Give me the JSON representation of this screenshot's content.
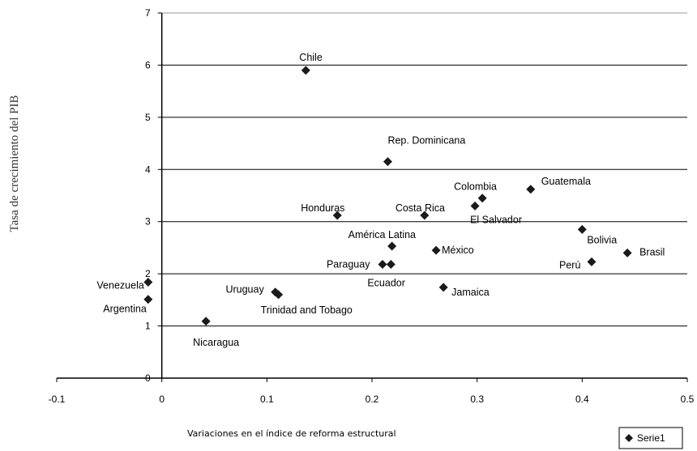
{
  "chart_data": {
    "type": "scatter",
    "xlabel": "Variaciones en el índice de  reforma estructural",
    "ylabel": "Tasa de crecimiento del PIB",
    "xlim": [
      -0.1,
      0.5
    ],
    "ylim": [
      0,
      7
    ],
    "x_ticks": [
      "-0.1",
      "0",
      "0.1",
      "0.2",
      "0.3",
      "0.4",
      "0.5"
    ],
    "y_ticks": [
      "0",
      "1",
      "2",
      "3",
      "4",
      "5",
      "6",
      "7"
    ],
    "grid": "horizontal",
    "legend_position": "bottom-right",
    "marker": "diamond",
    "color": "#1a1a1a",
    "series": [
      {
        "name": "Serie1",
        "points": [
          {
            "label": "Chile",
            "x": 0.137,
            "y": 5.9
          },
          {
            "label": "Rep. Dominicana",
            "x": 0.215,
            "y": 4.15
          },
          {
            "label": "Guatemala",
            "x": 0.351,
            "y": 3.62
          },
          {
            "label": "Colombia",
            "x": 0.305,
            "y": 3.45
          },
          {
            "label": "Costa Rica",
            "x": 0.25,
            "y": 3.12
          },
          {
            "label": "El Salvador",
            "x": 0.298,
            "y": 3.3
          },
          {
            "label": "Honduras",
            "x": 0.167,
            "y": 3.12
          },
          {
            "label": "Bolivia",
            "x": 0.4,
            "y": 2.85
          },
          {
            "label": "América Latina",
            "x": 0.219,
            "y": 2.53
          },
          {
            "label": "México",
            "x": 0.261,
            "y": 2.45
          },
          {
            "label": "Brasil",
            "x": 0.443,
            "y": 2.4
          },
          {
            "label": "Perú",
            "x": 0.409,
            "y": 2.23
          },
          {
            "label": "Paraguay",
            "x": 0.21,
            "y": 2.18
          },
          {
            "label": "Ecuador",
            "x": 0.218,
            "y": 2.18
          },
          {
            "label": "Jamaica",
            "x": 0.268,
            "y": 1.74
          },
          {
            "label": "Venezuela",
            "x": -0.013,
            "y": 1.84
          },
          {
            "label": "Uruguay",
            "x": 0.108,
            "y": 1.65
          },
          {
            "label": "Trinidad and Tobago",
            "x": 0.111,
            "y": 1.6
          },
          {
            "label": "Argentina",
            "x": -0.013,
            "y": 1.51
          },
          {
            "label": "Nicaragua",
            "x": 0.042,
            "y": 1.09
          }
        ]
      }
    ]
  }
}
